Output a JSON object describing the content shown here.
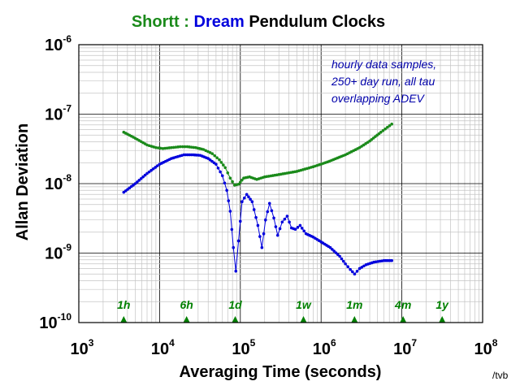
{
  "chart_data": {
    "type": "scatter",
    "title_parts": [
      {
        "text": "Shortt",
        "color": "#1a8a1a"
      },
      {
        "text": " : ",
        "color": "#1a8a1a"
      },
      {
        "text": "Dream",
        "color": "#0000dd"
      },
      {
        "text": " Pendulum Clocks",
        "color": "#000000"
      }
    ],
    "xlabel": "Averaging Time (seconds)",
    "ylabel": "Allan Deviation",
    "xscale": "log",
    "yscale": "log",
    "xlim": [
      1000,
      100000000
    ],
    "ylim": [
      1e-10,
      1e-06
    ],
    "x_ticks": [
      {
        "base": "10",
        "exp": "3"
      },
      {
        "base": "10",
        "exp": "4"
      },
      {
        "base": "10",
        "exp": "5"
      },
      {
        "base": "10",
        "exp": "6"
      },
      {
        "base": "10",
        "exp": "7"
      },
      {
        "base": "10",
        "exp": "8"
      }
    ],
    "y_ticks": [
      {
        "base": "10",
        "exp": "-10"
      },
      {
        "base": "10",
        "exp": "-9"
      },
      {
        "base": "10",
        "exp": "-8"
      },
      {
        "base": "10",
        "exp": "-7"
      },
      {
        "base": "10",
        "exp": "-6"
      }
    ],
    "grid": true,
    "annotation_lines": [
      "hourly data samples,",
      "250+ day run, all tau",
      "overlapping ADEV"
    ],
    "annotation_color": "#0000aa",
    "time_markers": [
      {
        "label": "1h",
        "x": 3600
      },
      {
        "label": "6h",
        "x": 21600
      },
      {
        "label": "1d",
        "x": 86400
      },
      {
        "label": "1w",
        "x": 604800
      },
      {
        "label": "1m",
        "x": 2592000
      },
      {
        "label": "4m",
        "x": 10368000
      },
      {
        "label": "1y",
        "x": 31536000
      }
    ],
    "marker_color": "#008000",
    "series": [
      {
        "name": "Shortt",
        "color": "#1a8a1a",
        "points": [
          [
            3600,
            5.5e-08
          ],
          [
            5000,
            4.5e-08
          ],
          [
            7000,
            3.6e-08
          ],
          [
            9000,
            3.3e-08
          ],
          [
            11000,
            3.2e-08
          ],
          [
            14000,
            3.3e-08
          ],
          [
            18000,
            3.4e-08
          ],
          [
            22000,
            3.4e-08
          ],
          [
            28000,
            3.3e-08
          ],
          [
            35000,
            3.1e-08
          ],
          [
            45000,
            2.7e-08
          ],
          [
            55000,
            2.2e-08
          ],
          [
            65000,
            1.7e-08
          ],
          [
            75000,
            1.2e-08
          ],
          [
            85000,
            9.5e-09
          ],
          [
            95000,
            9.8e-09
          ],
          [
            110000,
            1.2e-08
          ],
          [
            130000,
            1.25e-08
          ],
          [
            160000,
            1.15e-08
          ],
          [
            200000,
            1.25e-08
          ],
          [
            300000,
            1.35e-08
          ],
          [
            500000,
            1.5e-08
          ],
          [
            800000,
            1.75e-08
          ],
          [
            1200000,
            2.05e-08
          ],
          [
            2000000,
            2.6e-08
          ],
          [
            3000000,
            3.3e-08
          ],
          [
            4000000,
            4.1e-08
          ],
          [
            5500000,
            5.5e-08
          ],
          [
            7500000,
            7.2e-08
          ]
        ]
      },
      {
        "name": "Dream",
        "color": "#0000dd",
        "points": [
          [
            3600,
            7.5e-09
          ],
          [
            5000,
            1e-08
          ],
          [
            7000,
            1.4e-08
          ],
          [
            10000,
            1.9e-08
          ],
          [
            14000,
            2.3e-08
          ],
          [
            20000,
            2.6e-08
          ],
          [
            26000,
            2.6e-08
          ],
          [
            32000,
            2.55e-08
          ],
          [
            40000,
            2.3e-08
          ],
          [
            50000,
            1.9e-08
          ],
          [
            60000,
            1.3e-08
          ],
          [
            68000,
            8e-09
          ],
          [
            75000,
            4e-09
          ],
          [
            82000,
            1.2e-09
          ],
          [
            88000,
            5.5e-10
          ],
          [
            95000,
            1.5e-09
          ],
          [
            105000,
            5.5e-09
          ],
          [
            120000,
            7e-09
          ],
          [
            140000,
            5.5e-09
          ],
          [
            165000,
            2.5e-09
          ],
          [
            185000,
            1.2e-09
          ],
          [
            205000,
            3e-09
          ],
          [
            230000,
            5.2e-09
          ],
          [
            260000,
            3.2e-09
          ],
          [
            290000,
            1.8e-09
          ],
          [
            330000,
            2.8e-09
          ],
          [
            380000,
            3.4e-09
          ],
          [
            430000,
            2.3e-09
          ],
          [
            480000,
            2.2e-09
          ],
          [
            550000,
            2.5e-09
          ],
          [
            650000,
            1.9e-09
          ],
          [
            800000,
            1.7e-09
          ],
          [
            1000000,
            1.45e-09
          ],
          [
            1300000,
            1.2e-09
          ],
          [
            1700000,
            9e-10
          ],
          [
            2000000,
            7e-10
          ],
          [
            2300000,
            5.8e-10
          ],
          [
            2600000,
            5e-10
          ],
          [
            3000000,
            6e-10
          ],
          [
            3600000,
            6.8e-10
          ],
          [
            4500000,
            7.4e-10
          ],
          [
            6000000,
            7.8e-10
          ],
          [
            7500000,
            7.8e-10
          ]
        ]
      }
    ],
    "credit": "/tvb"
  }
}
